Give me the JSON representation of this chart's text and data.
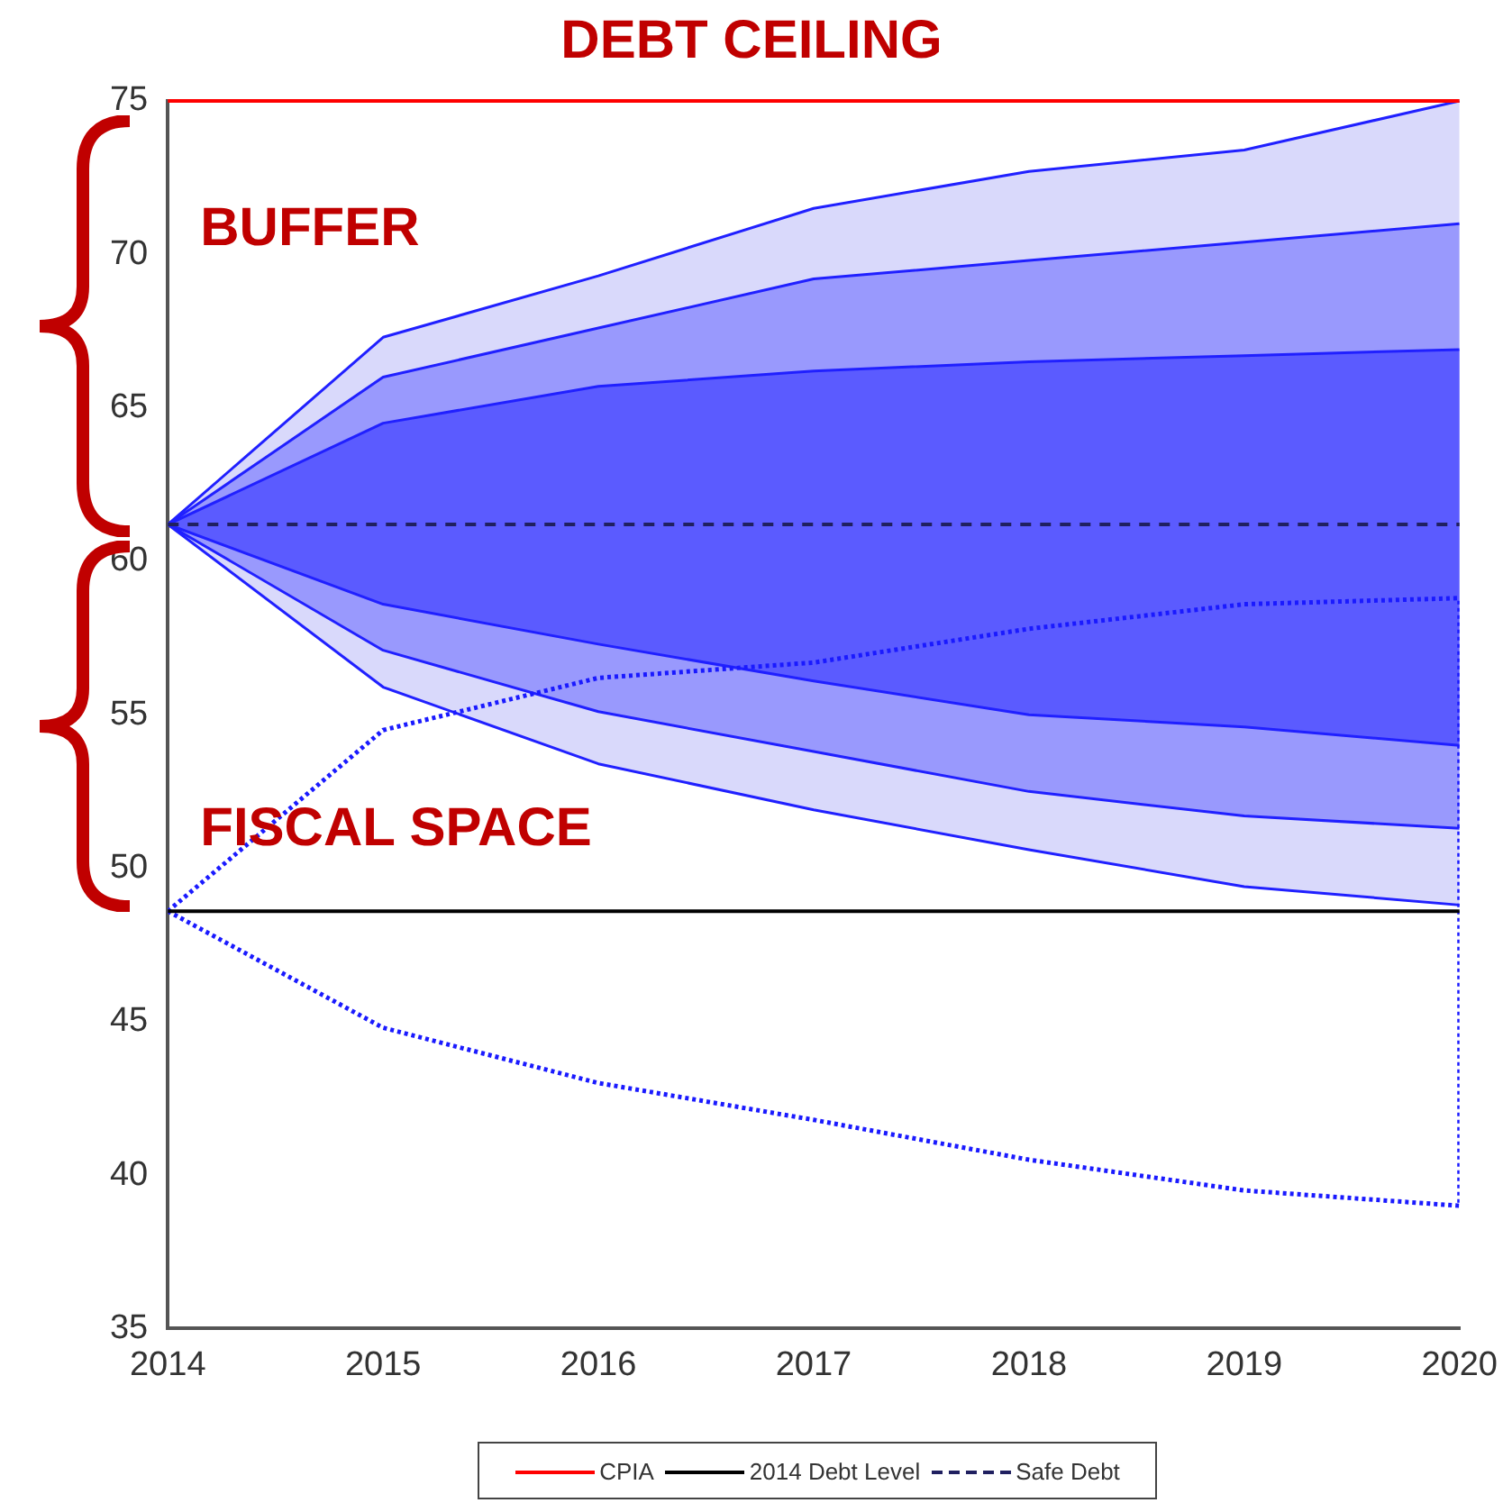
{
  "chart_data": {
    "type": "area",
    "title": "DEBT CEILING",
    "x": [
      2014,
      2015,
      2016,
      2017,
      2018,
      2019,
      2020
    ],
    "series": [
      {
        "color": "#d9d9fb",
        "values": [
          null,
          null,
          null,
          null,
          null,
          null,
          null
        ],
        "lower": [
          61.2,
          55.9,
          53.4,
          51.9,
          50.6,
          49.4,
          48.8
        ],
        "upper": [
          61.2,
          67.3,
          69.3,
          71.5,
          72.7,
          73.4,
          75.0
        ]
      },
      {
        "color": "#9999fd",
        "values": [
          null,
          null,
          null,
          null,
          null,
          null,
          null
        ],
        "lower": [
          61.2,
          57.1,
          55.1,
          53.8,
          52.5,
          51.7,
          51.3
        ],
        "upper": [
          61.2,
          66.0,
          67.6,
          69.2,
          69.8,
          70.4,
          71.0
        ]
      },
      {
        "color": "#5b5bff",
        "values": [
          null,
          null,
          null,
          null,
          null,
          null,
          null
        ],
        "lower": [
          61.2,
          58.6,
          57.3,
          56.1,
          55.0,
          54.6,
          54.0
        ],
        "upper": [
          61.2,
          64.5,
          65.7,
          66.2,
          66.5,
          66.7,
          66.9
        ]
      },
      {
        "type": "line",
        "color": "#2020ff",
        "values": [
          61.2,
          67.3,
          69.3,
          71.5,
          72.7,
          73.4,
          75.0
        ]
      },
      {
        "type": "line",
        "color": "#2020ff",
        "values": [
          61.2,
          66.0,
          67.6,
          69.2,
          69.8,
          70.4,
          71.0
        ]
      },
      {
        "type": "line",
        "color": "#2020ff",
        "values": [
          61.2,
          64.5,
          65.7,
          66.2,
          66.5,
          66.7,
          66.9
        ]
      },
      {
        "type": "line",
        "color": "#2020ff",
        "values": [
          61.2,
          58.6,
          57.3,
          56.1,
          55.0,
          54.6,
          54.0
        ]
      },
      {
        "type": "line",
        "color": "#2020ff",
        "values": [
          61.2,
          57.1,
          55.1,
          53.8,
          52.5,
          51.7,
          51.3
        ]
      },
      {
        "type": "line",
        "color": "#2020ff",
        "values": [
          61.2,
          55.9,
          53.4,
          51.9,
          50.6,
          49.4,
          48.8
        ]
      },
      {
        "type": "line",
        "color": "#1a1aff",
        "line_style": "dotted",
        "values": [
          48.6,
          54.5,
          56.2,
          56.7,
          57.8,
          58.6,
          58.8
        ]
      },
      {
        "type": "line",
        "color": "#1a1aff",
        "line_style": "dotted",
        "x": [
          2014,
          2015,
          2016,
          2017,
          2018,
          2019,
          2020,
          2020
        ],
        "values": [
          48.6,
          44.8,
          43.0,
          41.8,
          40.5,
          39.5,
          39.0,
          58.8
        ]
      }
    ],
    "ref_lines": [
      {
        "axis": "y",
        "value": 75,
        "label": "CPIA",
        "color": "#ff0000",
        "line_style": "solid"
      },
      {
        "axis": "y",
        "value": 48.6,
        "label": "2014 Debt Level",
        "color": "#000000",
        "line_style": "solid"
      },
      {
        "axis": "y",
        "value": 61.2,
        "label": "Safe Debt",
        "color": "#202060",
        "line_style": "dashed"
      }
    ],
    "annotations": [
      "BUFFER",
      "FISCAL SPACE"
    ],
    "xlim": [
      2014,
      2020
    ],
    "xticks": [
      2014,
      2015,
      2016,
      2017,
      2018,
      2019,
      2020
    ],
    "ylim": [
      35,
      75
    ],
    "yticks": [
      35,
      40,
      45,
      50,
      55,
      60,
      65,
      70,
      75
    ],
    "grid": false,
    "legend": "bottom",
    "marker": "none"
  }
}
